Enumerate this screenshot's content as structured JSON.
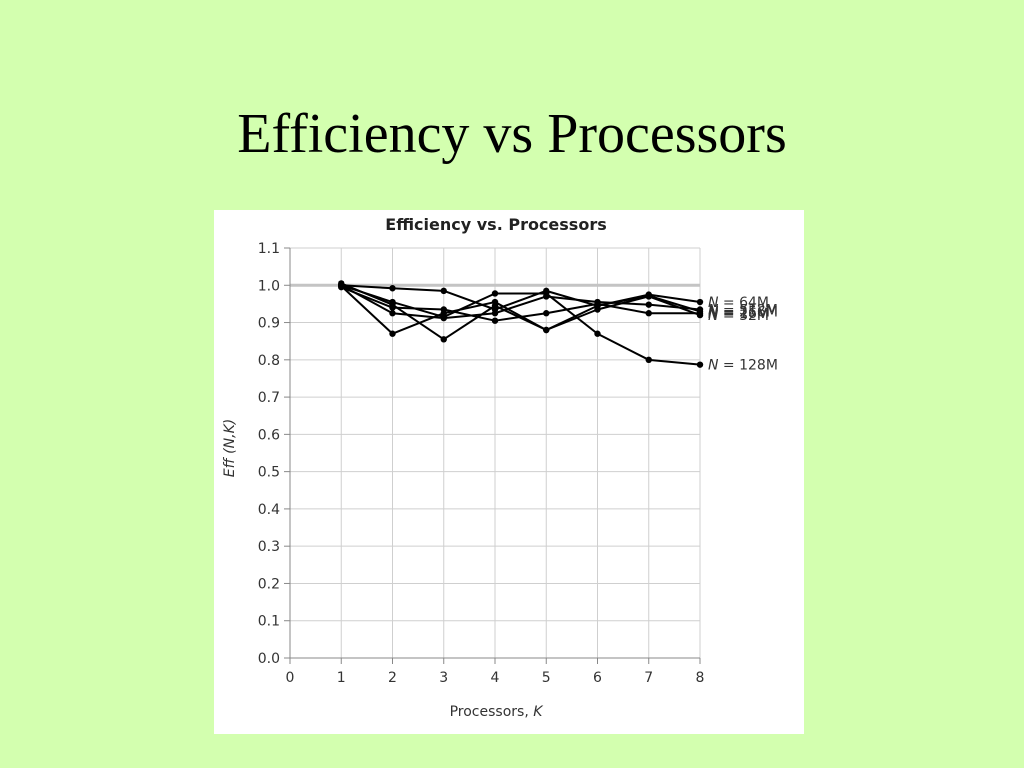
{
  "slide": {
    "title": "Efficiency vs Processors"
  },
  "chart_data": {
    "type": "line",
    "title": "Efficiency vs. Processors",
    "xlabel": "Processors, K",
    "xlabel_text": "Processors, ",
    "xlabel_var": "K",
    "ylabel": "Eff (N,K)",
    "xlim": [
      0,
      8
    ],
    "ylim": [
      0.0,
      1.1
    ],
    "grid": true,
    "reference_line": 1.0,
    "x_ticks": [
      "0",
      "1",
      "2",
      "3",
      "4",
      "5",
      "6",
      "7",
      "8"
    ],
    "y_ticks": [
      "0.0",
      "0.1",
      "0.2",
      "0.3",
      "0.4",
      "0.5",
      "0.6",
      "0.7",
      "0.8",
      "0.9",
      "1.0",
      "1.1"
    ],
    "x": [
      1,
      2,
      3,
      4,
      5,
      6,
      7,
      8
    ],
    "series": [
      {
        "name": "N = 64M",
        "name_var": "N",
        "name_rest": " = 64M",
        "values": [
          1.0,
          0.992,
          0.985,
          0.935,
          0.985,
          0.945,
          0.975,
          0.955
        ]
      },
      {
        "name": "N = 128M",
        "name_var": "N",
        "name_rest": " = 128M",
        "values": [
          1.0,
          0.955,
          0.915,
          0.978,
          0.978,
          0.87,
          0.8,
          0.787
        ]
      },
      {
        "name": "N = 256M",
        "name_var": "N",
        "name_rest": " = 256M",
        "values": [
          0.998,
          0.87,
          0.925,
          0.955,
          0.88,
          0.945,
          0.972,
          0.93
        ]
      },
      {
        "name": "N = 512M",
        "name_var": "N",
        "name_rest": " = 512M",
        "values": [
          1.0,
          0.925,
          0.912,
          0.925,
          0.97,
          0.955,
          0.948,
          0.935
        ]
      },
      {
        "name": "N = 32M",
        "name_var": "N",
        "name_rest": " = 32M",
        "values": [
          1.005,
          0.948,
          0.855,
          0.945,
          0.88,
          0.935,
          0.97,
          0.92
        ]
      },
      {
        "name": "N = 16M",
        "name_var": "N",
        "name_rest": " = 16M",
        "values": [
          0.995,
          0.94,
          0.935,
          0.905,
          0.925,
          0.95,
          0.925,
          0.925
        ]
      }
    ]
  }
}
